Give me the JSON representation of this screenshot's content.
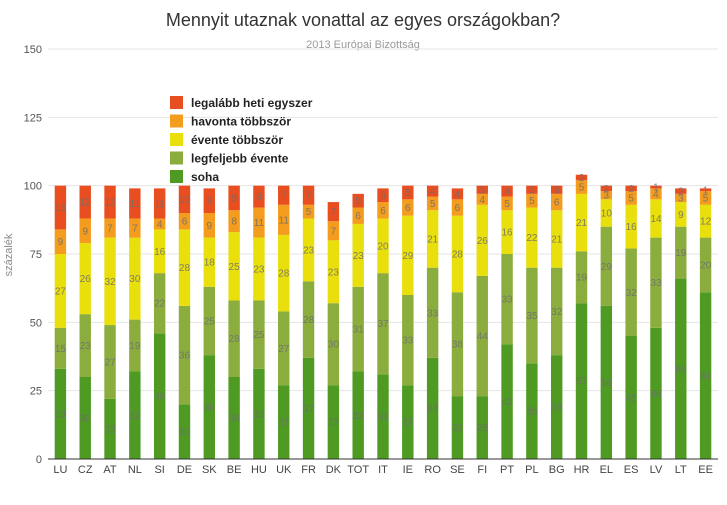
{
  "chart_data": {
    "type": "bar",
    "stacked": true,
    "title": "Mennyit utaznak vonattal az egyes országokban?",
    "subtitle": "2013 Európai Bizottság",
    "ylabel": "százalék",
    "ylim": [
      0,
      150
    ],
    "yticks": [
      0,
      25,
      50,
      75,
      100,
      125,
      150
    ],
    "grid": true,
    "legend_position": "top-left",
    "categories": [
      "LU",
      "CZ",
      "AT",
      "NL",
      "SI",
      "DE",
      "SK",
      "BE",
      "HU",
      "UK",
      "FR",
      "DK",
      "TOT",
      "IT",
      "IE",
      "RO",
      "SE",
      "FI",
      "PT",
      "PL",
      "BG",
      "HR",
      "EL",
      "ES",
      "LV",
      "LT",
      "EE"
    ],
    "series": [
      {
        "name": "soha",
        "color": "#4e9a22",
        "values": [
          33,
          30,
          22,
          32,
          46,
          20,
          38,
          30,
          33,
          27,
          37,
          27,
          32,
          31,
          27,
          37,
          23,
          23,
          42,
          35,
          38,
          57,
          56,
          45,
          48,
          66,
          61
        ]
      },
      {
        "name": "legfeljebb évente",
        "color": "#8aad3e",
        "values": [
          15,
          23,
          27,
          19,
          22,
          36,
          25,
          28,
          25,
          27,
          28,
          30,
          31,
          37,
          33,
          33,
          38,
          44,
          33,
          35,
          32,
          19,
          29,
          32,
          33,
          19,
          20
        ]
      },
      {
        "name": "évente többször",
        "color": "#e8df0c",
        "values": [
          27,
          26,
          32,
          30,
          16,
          28,
          18,
          25,
          23,
          28,
          23,
          23,
          23,
          20,
          29,
          21,
          28,
          26,
          16,
          22,
          21,
          21,
          10,
          16,
          14,
          9,
          12
        ]
      },
      {
        "name": "havonta többször",
        "color": "#f39c1e",
        "values": [
          9,
          9,
          7,
          7,
          4,
          6,
          9,
          8,
          11,
          11,
          5,
          7,
          6,
          6,
          6,
          5,
          6,
          4,
          5,
          5,
          6,
          5,
          3,
          5,
          4,
          3,
          5
        ]
      },
      {
        "name": "legalább heti egyszer",
        "color": "#e84e20",
        "values": [
          16,
          12,
          12,
          11,
          11,
          10,
          9,
          9,
          8,
          7,
          7,
          7,
          5,
          5,
          5,
          4,
          4,
          3,
          4,
          3,
          3,
          2,
          2,
          2,
          1,
          2,
          1
        ]
      }
    ],
    "labels": [
      [
        "33",
        "30",
        "22",
        "32",
        "46",
        "20",
        "38",
        "30",
        "33",
        "27",
        "37",
        "27",
        "32",
        "31",
        "27",
        "37",
        "23",
        "23",
        "42",
        "35",
        "38",
        "57",
        "56",
        "45",
        "48",
        "66",
        "61"
      ],
      [
        "15",
        "23",
        "27",
        "19",
        "22",
        "36",
        "25",
        "28",
        "25",
        "27",
        "28",
        "30",
        "31",
        "37",
        "33",
        "33",
        "38",
        "44",
        "33",
        "35",
        "32",
        "19",
        "29",
        "32",
        "33",
        "19",
        "20"
      ],
      [
        "27",
        "26",
        "32",
        "30",
        "16",
        "28",
        "18",
        "25",
        "23",
        "28",
        "23",
        "23",
        "23",
        "20",
        "29",
        "21",
        "28",
        "26",
        "16",
        "22",
        "21",
        "21",
        "10",
        "16",
        "14",
        "9",
        "12"
      ],
      [
        "9",
        "9",
        "7",
        "7",
        "4",
        "6",
        "9",
        "8",
        "11",
        "11",
        "5",
        "7",
        "6",
        "6",
        "6",
        "5",
        "6",
        "4",
        "5",
        "5",
        "6",
        "5",
        "3",
        "5",
        "4",
        "3",
        "5"
      ],
      [
        "16",
        "12",
        "12",
        "11",
        "11",
        "10",
        "9",
        "9",
        "8",
        "7",
        "7",
        "7",
        "5",
        "5",
        "5",
        "4",
        "4",
        "3",
        "4",
        "3",
        "3",
        "2",
        "2",
        "2",
        "1",
        "2",
        "1"
      ]
    ]
  }
}
